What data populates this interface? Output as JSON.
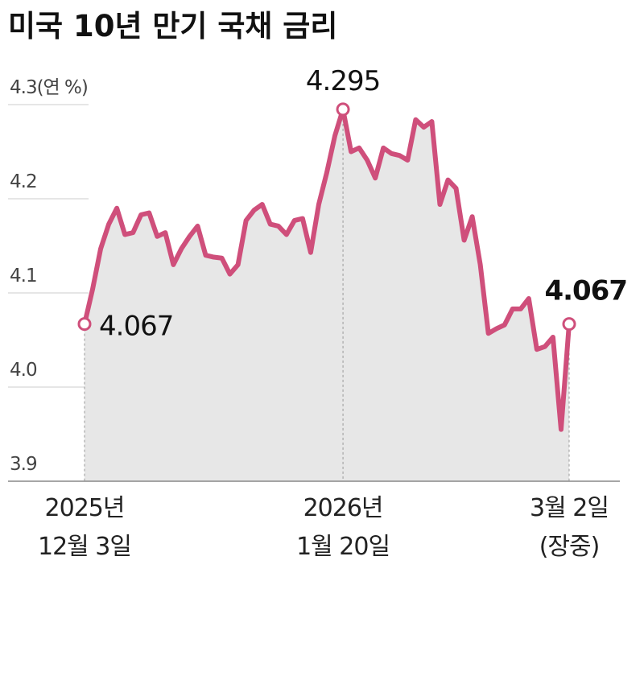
{
  "chart_data": {
    "type": "area_line",
    "title": "미국 10년 만기 국채 금리",
    "categories": [
      "2025년\n12월 3일",
      null,
      null,
      null,
      null,
      null,
      null,
      null,
      null,
      null,
      null,
      null,
      null,
      null,
      null,
      null,
      null,
      null,
      null,
      null,
      null,
      null,
      null,
      null,
      null,
      null,
      null,
      null,
      null,
      null,
      null,
      null,
      "2026년\n1월 20일",
      null,
      null,
      null,
      null,
      null,
      null,
      null,
      null,
      null,
      null,
      null,
      null,
      null,
      null,
      null,
      null,
      null,
      null,
      null,
      null,
      null,
      null,
      null,
      null,
      null,
      null,
      null,
      "3월 2일\n(장중)"
    ],
    "values": [
      4.067,
      4.104,
      4.147,
      4.173,
      4.19,
      4.162,
      4.164,
      4.183,
      4.185,
      4.16,
      4.164,
      4.13,
      4.147,
      4.16,
      4.171,
      4.14,
      4.138,
      4.137,
      4.12,
      4.13,
      4.177,
      4.188,
      4.194,
      4.173,
      4.171,
      4.162,
      4.177,
      4.179,
      4.143,
      4.194,
      4.228,
      4.267,
      4.295,
      4.25,
      4.254,
      4.241,
      4.222,
      4.254,
      4.248,
      4.246,
      4.241,
      4.284,
      4.276,
      4.282,
      4.194,
      4.22,
      4.211,
      4.156,
      4.181,
      4.13,
      4.057,
      4.062,
      4.066,
      4.083,
      4.083,
      4.094,
      4.04,
      4.043,
      4.053,
      3.955,
      4.067
    ],
    "value_labels": [
      "4.067",
      null,
      null,
      null,
      null,
      null,
      null,
      null,
      null,
      null,
      null,
      null,
      null,
      null,
      null,
      null,
      null,
      null,
      null,
      null,
      null,
      null,
      null,
      null,
      null,
      null,
      null,
      null,
      null,
      null,
      null,
      null,
      "4.295",
      null,
      null,
      null,
      null,
      null,
      null,
      null,
      null,
      null,
      null,
      null,
      null,
      null,
      null,
      null,
      null,
      null,
      null,
      null,
      null,
      null,
      null,
      null,
      null,
      null,
      null,
      null,
      "4.067"
    ],
    "color": "#cf4f7b",
    "area_color": "#e7e7e7",
    "ylim": [
      3.9,
      4.3
    ],
    "yticks": [
      3.9,
      {
        "value": 4.0,
        "label": "4.0"
      },
      4.1,
      4.2,
      {
        "value": 4.3,
        "label": "4.3(연 %)"
      }
    ],
    "grid": true
  }
}
